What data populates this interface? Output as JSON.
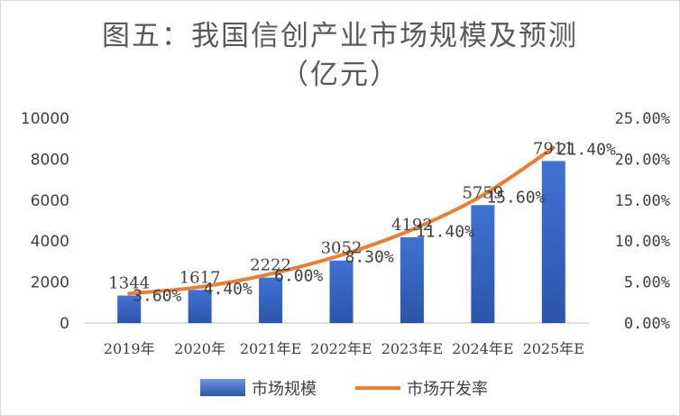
{
  "chart_data": {
    "type": "bar",
    "title": "图五：我国信创产业市场规模及预测",
    "subtitle": "（亿元）",
    "categories": [
      "2019年",
      "2020年",
      "2021年E",
      "2022年E",
      "2023年E",
      "2024年E",
      "2025年E"
    ],
    "series": [
      {
        "name": "市场规模",
        "type": "bar",
        "axis": "left",
        "values": [
          1344,
          1617,
          2222,
          3052,
          4192,
          5759,
          7911
        ],
        "labels": [
          "1344",
          "1617",
          "2222",
          "3052",
          "4192",
          "5759",
          "7911"
        ],
        "color": "#3a68c4"
      },
      {
        "name": "市场开发率",
        "type": "line",
        "axis": "right",
        "values": [
          3.6,
          4.4,
          6.0,
          8.3,
          11.4,
          15.6,
          21.4
        ],
        "labels": [
          "3.60%",
          "4.40%",
          "6.00%",
          "8.30%",
          "11.40%",
          "15.60%",
          "21.40%"
        ],
        "color": "#ed7d31"
      }
    ],
    "y_left": {
      "min": 0,
      "max": 10000,
      "ticks": [
        "0",
        "2000",
        "4000",
        "6000",
        "8000",
        "10000"
      ]
    },
    "y_right": {
      "min": 0,
      "max": 25,
      "ticks": [
        "0.00%",
        "5.00%",
        "10.00%",
        "15.00%",
        "20.00%",
        "25.00%"
      ]
    },
    "grid": false,
    "legend": "bottom"
  }
}
